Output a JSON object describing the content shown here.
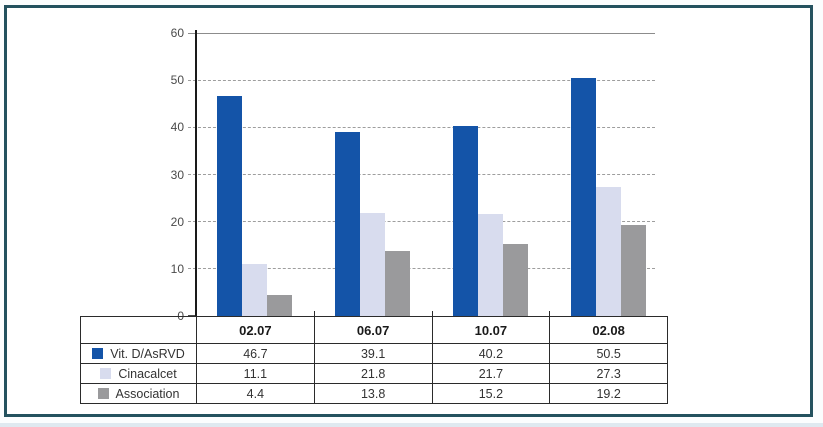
{
  "panel": {
    "border_color": "#24525f",
    "background": "#ffffff",
    "page_bottom_strip_color": "#dfe9f0"
  },
  "chart_data": {
    "type": "bar",
    "categories": [
      "02.07",
      "06.07",
      "10.07",
      "02.08"
    ],
    "series": [
      {
        "name": "Vit. D/AsRVD",
        "color": "#1454a8",
        "values": [
          46.7,
          39.1,
          40.2,
          50.5
        ]
      },
      {
        "name": "Cinacalcet",
        "color": "#d8dcee",
        "values": [
          11.1,
          21.8,
          21.7,
          27.3
        ]
      },
      {
        "name": "Association",
        "color": "#9a9a9c",
        "values": [
          4.4,
          13.8,
          15.2,
          19.2
        ]
      }
    ],
    "title": "",
    "xlabel": "",
    "ylabel": "",
    "ylim": [
      0,
      60
    ],
    "yticks": [
      0,
      10,
      20,
      30,
      40,
      50,
      60
    ],
    "grid": "horizontal-dashed",
    "gridline_color": "#9e9e9e",
    "axis_color": "#1a1a1a",
    "legend_position": "table-left-column",
    "data_table_shown": true
  }
}
